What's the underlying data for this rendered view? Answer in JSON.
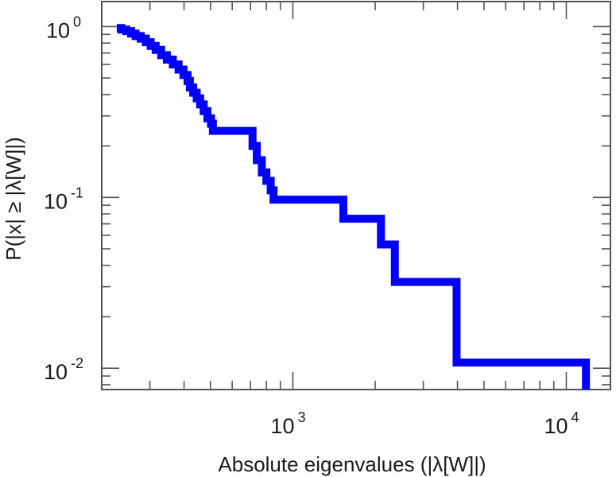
{
  "chart_data": {
    "type": "line",
    "step": true,
    "title": "",
    "xlabel": "Absolute eigenvalues (|λ[W]|)",
    "ylabel": "P(|x| ≥ |λ[W]|)",
    "xscale": "log",
    "yscale": "log",
    "xlim": [
      200,
      14500
    ],
    "ylim": [
      0.0075,
      1.4
    ],
    "grid": false,
    "legend": "none",
    "series_color": "#0000ff",
    "x_ticks": [
      {
        "value": 1000,
        "base": "10",
        "exp": "3"
      },
      {
        "value": 10000,
        "base": "10",
        "exp": "4"
      }
    ],
    "y_ticks": [
      {
        "value": 1,
        "base": "10",
        "exp": "0"
      },
      {
        "value": 0.1,
        "base": "10",
        "exp": "-1"
      },
      {
        "value": 0.01,
        "base": "10",
        "exp": "-2"
      }
    ],
    "series": [
      {
        "x": [
          227,
          236,
          246,
          256,
          266,
          278,
          290,
          302,
          315,
          330,
          346,
          364,
          382,
          398,
          412,
          420,
          432,
          445,
          458,
          472,
          487,
          502,
          510,
          705,
          712,
          738,
          770,
          800,
          830,
          850,
          1520,
          1530,
          2080,
          2100,
          2340,
          2360,
          3950,
          3970,
          11600,
          11800
        ],
        "y": [
          0.98,
          0.96,
          0.94,
          0.91,
          0.88,
          0.85,
          0.81,
          0.77,
          0.73,
          0.68,
          0.64,
          0.6,
          0.56,
          0.52,
          0.48,
          0.44,
          0.41,
          0.38,
          0.35,
          0.32,
          0.29,
          0.27,
          0.245,
          0.245,
          0.2,
          0.165,
          0.14,
          0.125,
          0.11,
          0.097,
          0.097,
          0.075,
          0.075,
          0.053,
          0.053,
          0.032,
          0.032,
          0.0108,
          0.0108,
          0.0075
        ]
      }
    ]
  }
}
